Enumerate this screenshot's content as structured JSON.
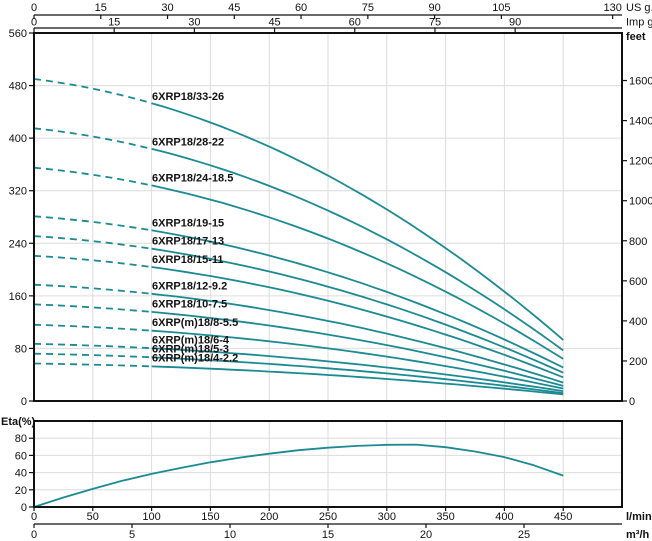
{
  "colors": {
    "curve": "#1b8a93",
    "grid": "#dcdcdc",
    "axis": "#111111",
    "text": "#111111",
    "background": "#ffffff"
  },
  "chart_data": [
    {
      "id": "head_chart",
      "type": "line",
      "title": "",
      "x_unit_base": "l/min",
      "x_range_lmin": [
        0,
        500
      ],
      "grid_x_step_lmin": 50,
      "dashed_until_lmin": 100,
      "curve_end_lmin": 450,
      "top_axis_us": {
        "label": "US g.p.m",
        "ticks": [
          0,
          15,
          30,
          45,
          60,
          75,
          90,
          105,
          130
        ]
      },
      "top_axis_imp": {
        "label": "Imp g.p.m",
        "ticks": [
          0,
          15,
          30,
          45,
          60,
          75,
          90
        ]
      },
      "y_axis_left": {
        "label": "",
        "ticks": [
          0,
          80,
          160,
          240,
          320,
          400,
          480,
          560
        ],
        "max": 560
      },
      "y_axis_right": {
        "label": "feet",
        "ticks": [
          0,
          200,
          400,
          600,
          800,
          1000,
          1200,
          1400,
          1600
        ]
      },
      "grid_y_lines": [
        80,
        160,
        240,
        320,
        400,
        480
      ],
      "curves": [
        {
          "label": "6XRP18/33-26",
          "shutoff_head": 490,
          "head_at_end": 93
        },
        {
          "label": "6XRP18/28-22",
          "shutoff_head": 415,
          "head_at_end": 77
        },
        {
          "label": "6XRP18/24-18.5",
          "shutoff_head": 355,
          "head_at_end": 64
        },
        {
          "label": "6XRP18/19-15",
          "shutoff_head": 281,
          "head_at_end": 51
        },
        {
          "label": "6XRP18/17-13",
          "shutoff_head": 251,
          "head_at_end": 43
        },
        {
          "label": "6XRP18/15-11",
          "shutoff_head": 221,
          "head_at_end": 36
        },
        {
          "label": "6XRP18/12-9.2",
          "shutoff_head": 177,
          "head_at_end": 28
        },
        {
          "label": "6XRP18/10-7.5",
          "shutoff_head": 147,
          "head_at_end": 23
        },
        {
          "label": "6XRP(m)18/8-5.5",
          "shutoff_head": 116,
          "head_at_end": 19
        },
        {
          "label": "6XRP(m)18/6-4",
          "shutoff_head": 87,
          "head_at_end": 15
        },
        {
          "label": "6XRP(m)18/5-3",
          "shutoff_head": 72,
          "head_at_end": 12
        },
        {
          "label": "6XRP(m)18/4-2.2",
          "shutoff_head": 57,
          "head_at_end": 10
        }
      ]
    },
    {
      "id": "efficiency_chart",
      "type": "line",
      "y_axis": {
        "label": "Eta(%)",
        "ticks": [
          0,
          20,
          40,
          60,
          80
        ],
        "max": 100
      },
      "x_axis_lmin": {
        "label": "l/min",
        "ticks": [
          0,
          50,
          100,
          150,
          200,
          250,
          300,
          350,
          400,
          450
        ]
      },
      "x_axis_m3h": {
        "label": "m³/h",
        "ticks": [
          0,
          5,
          10,
          15,
          20,
          25
        ]
      },
      "grid_y_lines": [
        20,
        40,
        60,
        80
      ],
      "points": [
        [
          0,
          0
        ],
        [
          25,
          11
        ],
        [
          50,
          21
        ],
        [
          75,
          30.5
        ],
        [
          100,
          38.5
        ],
        [
          125,
          45.5
        ],
        [
          150,
          52
        ],
        [
          175,
          57.5
        ],
        [
          200,
          62
        ],
        [
          225,
          66
        ],
        [
          250,
          69
        ],
        [
          275,
          71
        ],
        [
          300,
          72.3
        ],
        [
          325,
          72.5
        ],
        [
          350,
          69.5
        ],
        [
          375,
          64.5
        ],
        [
          400,
          58
        ],
        [
          425,
          48.5
        ],
        [
          450,
          36.5
        ]
      ]
    }
  ]
}
